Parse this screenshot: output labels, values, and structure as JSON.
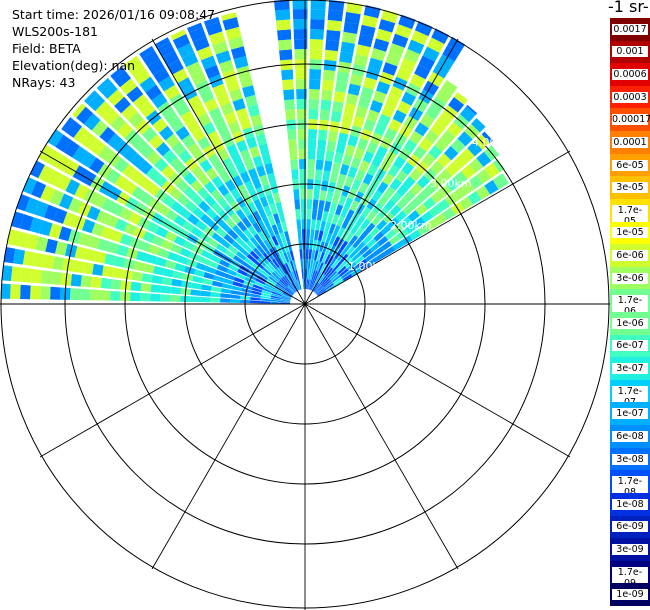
{
  "info": {
    "start_time": "Start time: 2026/01/16 09:08:47",
    "instrument": "WLS200s-181",
    "field": "Field: BETA",
    "elevation": "Elevation(deg): nan",
    "nrays": "NRays: 43"
  },
  "range_labels": [
    "1.00km",
    "2.00km",
    "3.00km",
    "4.00km",
    "5."
  ],
  "colorbar": {
    "title": "-1 sr-",
    "labels": [
      "0.0017",
      "0.001",
      "0.0006",
      "0.0003",
      "0.00017",
      "0.0001",
      "6e-05",
      "3e-05",
      "1.7e-05",
      "1e-05",
      "6e-06",
      "3e-06",
      "1.7e-06",
      "1e-06",
      "6e-07",
      "3e-07",
      "1.7e-07",
      "1e-07",
      "6e-08",
      "3e-08",
      "1.7e-08",
      "1e-08",
      "6e-09",
      "3e-09",
      "1.7e-09",
      "1e-09"
    ],
    "colors": [
      "#800000",
      "#b00000",
      "#e00000",
      "#ff2000",
      "#ff5000",
      "#ff8000",
      "#ffa000",
      "#ffc000",
      "#ffe000",
      "#ffff00",
      "#d0ff30",
      "#a0ff60",
      "#70ff90",
      "#70ff90",
      "#40ffc0",
      "#20f0e0",
      "#00d0ff",
      "#00b0ff",
      "#0090ff",
      "#0070ff",
      "#0050ff",
      "#0030e0",
      "#0020c0",
      "#0010a0",
      "#000080",
      "#000060"
    ]
  }
}
